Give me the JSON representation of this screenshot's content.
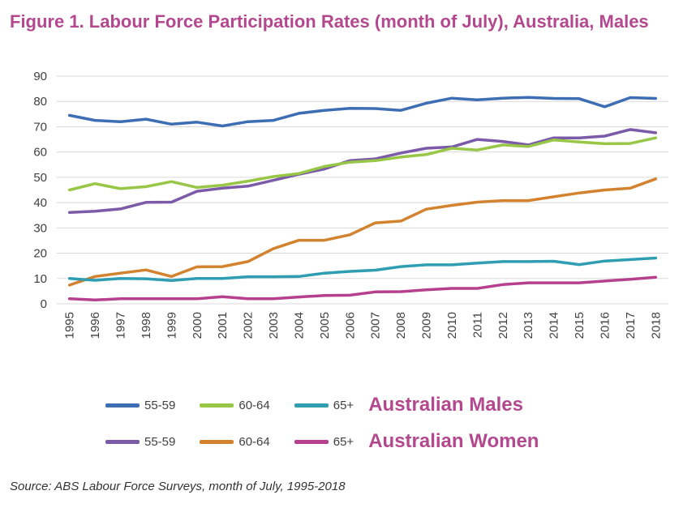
{
  "title": "Figure 1. Labour Force Participation Rates (month of July), Australia, Males",
  "source": "Source: ABS Labour Force Surveys, month of July, 1995-2018",
  "legend": {
    "row1_group": "Australian Males",
    "row2_group": "Australian Women",
    "row1_labels": [
      "55-59",
      "60-64",
      "65+"
    ],
    "row2_labels": [
      "55-59",
      "60-64",
      "65+"
    ]
  },
  "chart_data": {
    "type": "line",
    "title": "Figure 1. Labour Force Participation Rates (month of July), Australia, Males",
    "xlabel": "",
    "ylabel": "",
    "ylim": [
      0,
      90
    ],
    "yticks": [
      0,
      10,
      20,
      30,
      40,
      50,
      60,
      70,
      80,
      90
    ],
    "grid": true,
    "legend_position": "bottom",
    "x": [
      "1995",
      "1996",
      "1997",
      "1998",
      "1999",
      "2000",
      "2001",
      "2002",
      "2003",
      "2004",
      "2005",
      "2006",
      "2007",
      "2008",
      "2009",
      "2010",
      "2011",
      "2012",
      "2013",
      "2014",
      "2015",
      "2016",
      "2017",
      "2018"
    ],
    "series": [
      {
        "name": "55-59",
        "group": "Australian Males",
        "color": "#3d6eb4",
        "values": [
          74.5,
          72.5,
          72,
          73,
          71,
          71.8,
          70.3,
          72,
          72.5,
          75.3,
          76.5,
          77.3,
          77.2,
          76.5,
          79.3,
          81.3,
          80.6,
          81.3,
          81.6,
          81.2,
          81.1,
          77.9,
          81.5,
          81.2
        ]
      },
      {
        "name": "60-64",
        "group": "Australian Males",
        "color": "#98c647",
        "values": [
          45,
          47.5,
          45.5,
          46.3,
          48.3,
          46,
          46.9,
          48.5,
          50.3,
          51.5,
          54.3,
          56,
          56.6,
          58,
          59,
          61.5,
          60.8,
          62.8,
          62.2,
          64.8,
          64,
          63.3,
          63.4,
          65.6
        ]
      },
      {
        "name": "65+",
        "group": "Australian Males",
        "color": "#2f9db2",
        "values": [
          10,
          9.3,
          10,
          9.9,
          9.2,
          10,
          10,
          10.7,
          10.7,
          10.8,
          12.1,
          12.8,
          13.3,
          14.7,
          15.4,
          15.4,
          16.1,
          16.7,
          16.7,
          16.8,
          15.5,
          16.9,
          17.5,
          18.1
        ]
      },
      {
        "name": "55-59",
        "group": "Australian Women",
        "color": "#7b5aa8",
        "values": [
          36.1,
          36.6,
          37.5,
          40.1,
          40.2,
          44.5,
          45.7,
          46.5,
          48.8,
          51.2,
          53.3,
          56.6,
          57.3,
          59.6,
          61.5,
          62,
          65,
          64.2,
          62.8,
          65.6,
          65.6,
          66.3,
          68.9,
          67.6
        ]
      },
      {
        "name": "60-64",
        "group": "Australian Women",
        "color": "#d3832f",
        "values": [
          7.4,
          10.8,
          12.1,
          13.4,
          10.8,
          14.6,
          14.7,
          16.7,
          21.8,
          25.1,
          25.1,
          27.3,
          32,
          32.7,
          37.4,
          38.9,
          40.2,
          40.8,
          40.8,
          42.3,
          43.8,
          45,
          45.7,
          49.4
        ]
      },
      {
        "name": "65+",
        "group": "Australian Women",
        "color": "#b7408e",
        "values": [
          2,
          1.5,
          2,
          2,
          2,
          2,
          2.8,
          2,
          2,
          2.7,
          3.3,
          3.4,
          4.7,
          4.8,
          5.5,
          6.1,
          6.1,
          7.6,
          8.3,
          8.3,
          8.3,
          9.0,
          9.7,
          10.5
        ]
      }
    ]
  }
}
